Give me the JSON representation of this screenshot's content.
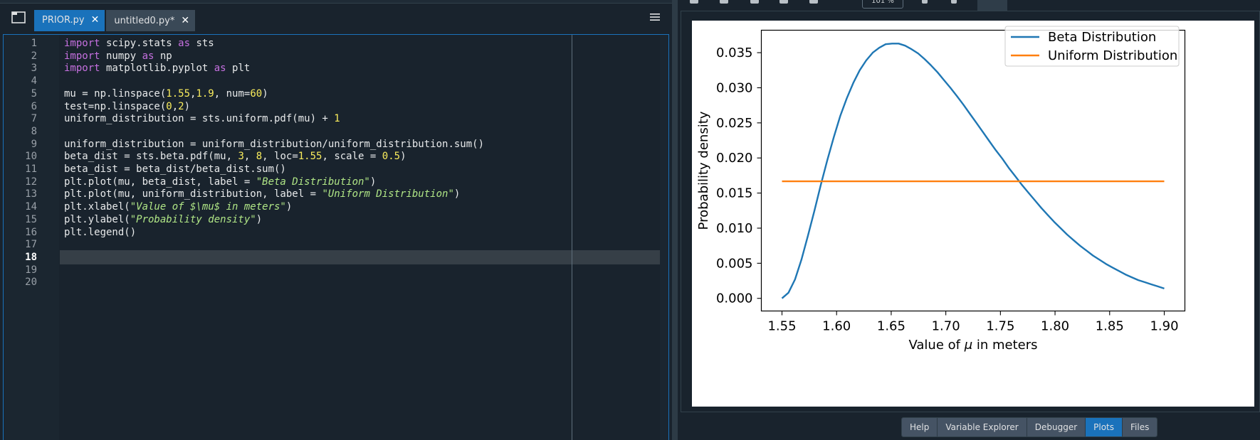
{
  "editor": {
    "tabs": [
      {
        "label": "PRIOR.py",
        "close": "✕",
        "active": true
      },
      {
        "label": "untitled0.py*",
        "close": "✕",
        "active": false
      }
    ],
    "current_line": 18,
    "line_numbers": [
      "1",
      "2",
      "3",
      "4",
      "5",
      "6",
      "7",
      "8",
      "9",
      "10",
      "11",
      "12",
      "13",
      "14",
      "15",
      "16",
      "17",
      "18",
      "19",
      "20"
    ],
    "code": {
      "l1": {
        "kw1": "import",
        "t1": " scipy.stats ",
        "kw2": "as",
        "t2": " sts"
      },
      "l2": {
        "kw1": "import",
        "t1": " numpy ",
        "kw2": "as",
        "t2": " np"
      },
      "l3": {
        "kw1": "import",
        "t1": " matplotlib.pyplot ",
        "kw2": "as",
        "t2": " plt"
      },
      "l5": {
        "t1": "mu = np.linspace(",
        "n1": "1.55",
        "t2": ",",
        "n2": "1.9",
        "t3": ", num=",
        "n3": "60",
        "t4": ")"
      },
      "l6": {
        "t1": "test=np.linspace(",
        "n1": "0",
        "t2": ",",
        "n2": "2",
        "t3": ")"
      },
      "l7": {
        "t1": "uniform_distribution = sts.uniform.pdf(mu) + ",
        "n1": "1"
      },
      "l9": {
        "t1": "uniform_distribution = uniform_distribution/uniform_distribution.sum()"
      },
      "l10": {
        "t1": "beta_dist = sts.beta.pdf(mu, ",
        "n1": "3",
        "t2": ", ",
        "n2": "8",
        "t3": ", loc=",
        "n3": "1.55",
        "t4": ", scale = ",
        "n4": "0.5",
        "t5": ")"
      },
      "l11": {
        "t1": "beta_dist = beta_dist/beta_dist.sum()"
      },
      "l12": {
        "t1": "plt.plot(mu, beta_dist, label = ",
        "s1": "\"Beta Distribution\"",
        "t2": ")"
      },
      "l13": {
        "t1": "plt.plot(mu, uniform_distribution, label = ",
        "s1": "\"Uniform Distribution\"",
        "t2": ")"
      },
      "l14": {
        "t1": "plt.xlabel(",
        "s1": "\"Value of $\\mu$ in meters\"",
        "t2": ")"
      },
      "l15": {
        "t1": "plt.ylabel(",
        "s1": "\"Probability density\"",
        "t2": ")"
      },
      "l16": {
        "t1": "plt.legend()"
      }
    }
  },
  "plots_toolbar": {
    "zoom": "101 %"
  },
  "bottom_tabs": [
    {
      "label": "Help",
      "active": false
    },
    {
      "label": "Variable Explorer",
      "active": false
    },
    {
      "label": "Debugger",
      "active": false
    },
    {
      "label": "Plots",
      "active": true
    },
    {
      "label": "Files",
      "active": false
    }
  ],
  "colors": {
    "beta": "#1f77b4",
    "uniform": "#ff7f0e",
    "accent": "#1a72bb"
  },
  "chart_data": {
    "type": "line",
    "xlabel_prefix": "Value of ",
    "xlabel_symbol": "μ",
    "xlabel_suffix": " in meters",
    "ylabel": "Probability density",
    "xlim": [
      1.55,
      1.9
    ],
    "ylim": [
      -0.0018,
      0.0382
    ],
    "xticks": [
      "1.55",
      "1.60",
      "1.65",
      "1.70",
      "1.75",
      "1.80",
      "1.85",
      "1.90"
    ],
    "yticks": [
      "0.000",
      "0.005",
      "0.010",
      "0.015",
      "0.020",
      "0.025",
      "0.030",
      "0.035"
    ],
    "legend_position": "top-right",
    "grid": false,
    "series": [
      {
        "name": "Beta Distribution",
        "color": "#1f77b4",
        "x": [
          1.55,
          1.5559,
          1.5619,
          1.5678,
          1.5737,
          1.5797,
          1.5856,
          1.5915,
          1.5975,
          1.6034,
          1.6093,
          1.6153,
          1.6212,
          1.6271,
          1.6331,
          1.639,
          1.6449,
          1.6508,
          1.6568,
          1.6627,
          1.6686,
          1.6746,
          1.6805,
          1.6864,
          1.6924,
          1.6983,
          1.7042,
          1.7102,
          1.7161,
          1.722,
          1.728,
          1.7339,
          1.7398,
          1.7458,
          1.7517,
          1.7576,
          1.7636,
          1.7695,
          1.7754,
          1.7814,
          1.7873,
          1.7932,
          1.7992,
          1.8051,
          1.811,
          1.8169,
          1.8229,
          1.8288,
          1.8347,
          1.8407,
          1.8466,
          1.8525,
          1.8585,
          1.8644,
          1.8703,
          1.8763,
          1.8822,
          1.8881,
          1.8941,
          1.9
        ],
        "y": [
          0.0,
          0.0008,
          0.0027,
          0.0055,
          0.0089,
          0.0125,
          0.0162,
          0.0197,
          0.023,
          0.026,
          0.0285,
          0.0307,
          0.0325,
          0.0339,
          0.035,
          0.0357,
          0.0362,
          0.0363,
          0.0363,
          0.036,
          0.0355,
          0.0349,
          0.0341,
          0.0332,
          0.0322,
          0.0311,
          0.03,
          0.0288,
          0.0276,
          0.0263,
          0.025,
          0.0237,
          0.0224,
          0.0211,
          0.0199,
          0.0186,
          0.0174,
          0.0162,
          0.0151,
          0.014,
          0.0129,
          0.0119,
          0.0109,
          0.01,
          0.0091,
          0.0083,
          0.0075,
          0.0068,
          0.0061,
          0.0055,
          0.0049,
          0.0044,
          0.0039,
          0.0034,
          0.003,
          0.0026,
          0.0023,
          0.002,
          0.0017,
          0.0014
        ]
      },
      {
        "name": "Uniform Distribution",
        "color": "#ff7f0e",
        "x": [
          1.55,
          1.9
        ],
        "y": [
          0.016667,
          0.016667
        ]
      }
    ]
  }
}
